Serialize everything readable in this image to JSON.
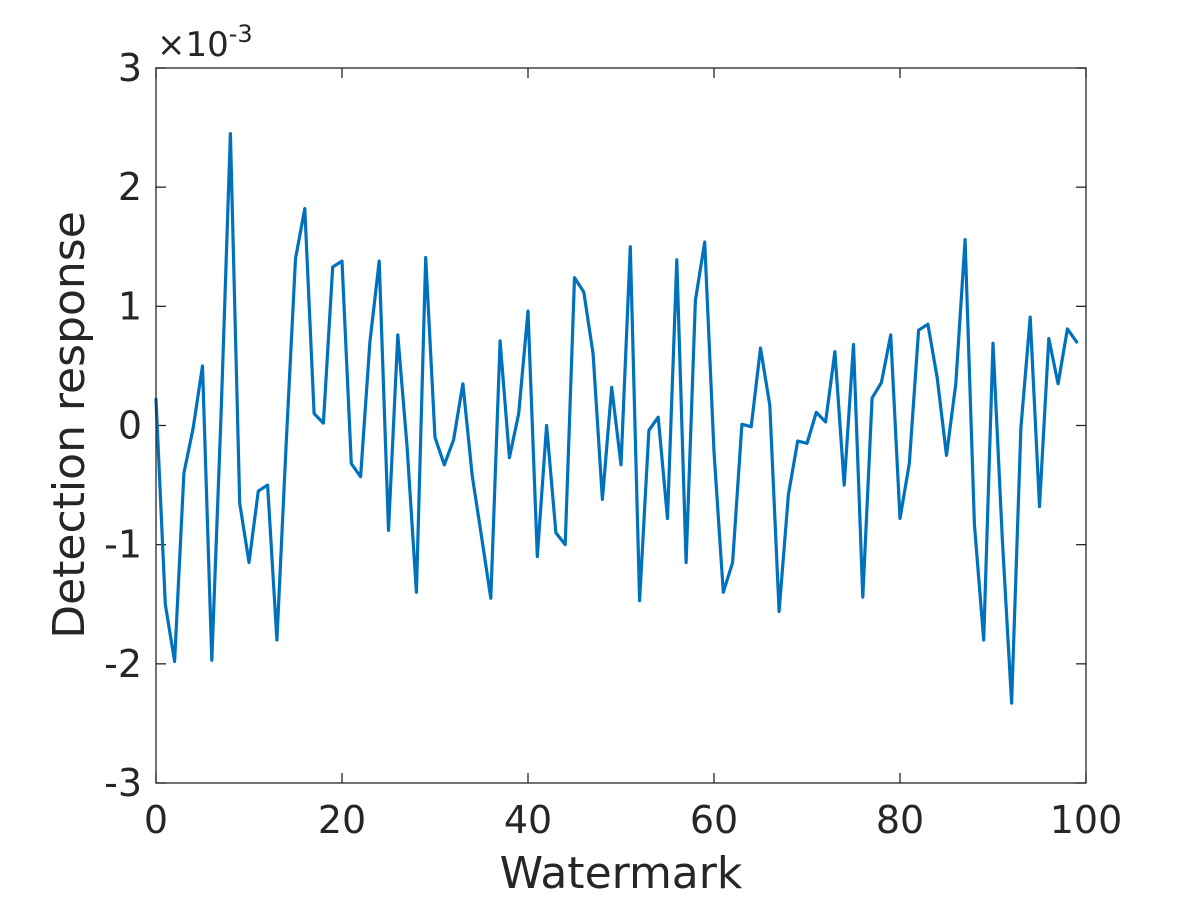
{
  "chart_data": {
    "type": "line",
    "title": "",
    "xlabel": "Watermark",
    "ylabel": "Detection response",
    "xlim": [
      0,
      100
    ],
    "ylim": [
      -3,
      3
    ],
    "y_scale_factor": {
      "base": "×10",
      "exponent": "-3"
    },
    "x_ticks": [
      0,
      20,
      40,
      60,
      80,
      100
    ],
    "x_tick_labels": [
      "0",
      "20",
      "40",
      "60",
      "80",
      "100"
    ],
    "y_ticks": [
      -3,
      -2,
      -1,
      0,
      1,
      2,
      3
    ],
    "y_tick_labels": [
      "-3",
      "-2",
      "-1",
      "0",
      "1",
      "2",
      "3"
    ],
    "grid": false,
    "box": true,
    "series": [
      {
        "color": "#0072BD",
        "x": [
          0,
          1,
          2,
          3,
          4,
          5,
          6,
          7,
          8,
          9,
          10,
          11,
          12,
          13,
          14,
          15,
          16,
          17,
          18,
          19,
          20,
          21,
          22,
          23,
          24,
          25,
          26,
          27,
          28,
          29,
          30,
          31,
          32,
          33,
          34,
          35,
          36,
          37,
          38,
          39,
          40,
          41,
          42,
          43,
          44,
          45,
          46,
          47,
          48,
          49,
          50,
          51,
          52,
          53,
          54,
          55,
          56,
          57,
          58,
          59,
          60,
          61,
          62,
          63,
          64,
          65,
          66,
          67,
          68,
          69,
          70,
          71,
          72,
          73,
          74,
          75,
          76,
          77,
          78,
          79,
          80,
          81,
          82,
          83,
          84,
          85,
          86,
          87,
          88,
          89,
          90,
          91,
          92,
          93,
          94,
          95,
          96,
          97,
          98,
          99
        ],
        "values": [
          0.22,
          -1.5,
          -1.98,
          -0.4,
          -0.02,
          0.5,
          -1.97,
          0.1,
          2.45,
          -0.65,
          -1.15,
          -0.55,
          -0.5,
          -1.8,
          -0.15,
          1.4,
          1.82,
          0.1,
          0.02,
          1.33,
          1.38,
          -0.32,
          -0.43,
          0.7,
          1.38,
          -0.88,
          0.76,
          -0.18,
          -1.4,
          1.41,
          -0.1,
          -0.33,
          -0.12,
          0.35,
          -0.42,
          -0.93,
          -1.45,
          0.71,
          -0.27,
          0.1,
          0.96,
          -1.1,
          0.0,
          -0.9,
          -1.0,
          1.24,
          1.12,
          0.6,
          -0.62,
          0.32,
          -0.33,
          1.5,
          -1.47,
          -0.04,
          0.07,
          -0.78,
          1.39,
          -1.15,
          1.05,
          1.54,
          -0.22,
          -1.4,
          -1.15,
          0.01,
          -0.01,
          0.65,
          0.17,
          -1.56,
          -0.58,
          -0.13,
          -0.15,
          0.11,
          0.03,
          0.62,
          -0.5,
          0.68,
          -1.44,
          0.23,
          0.36,
          0.76,
          -0.78,
          -0.32,
          0.8,
          0.85,
          0.4,
          -0.25,
          0.35,
          1.56,
          -0.83,
          -1.8,
          0.69,
          -0.95,
          -2.33,
          -0.02,
          0.91,
          -0.68,
          0.73,
          0.35,
          0.81,
          0.7
        ]
      }
    ]
  }
}
